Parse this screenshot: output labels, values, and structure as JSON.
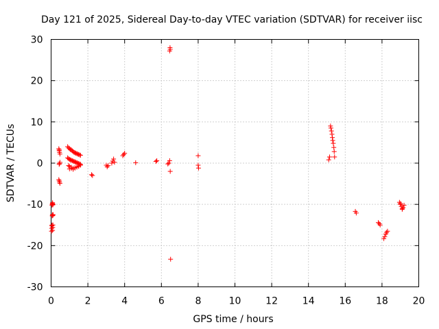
{
  "chart_data": {
    "type": "scatter",
    "title": "Day 121 of 2025, Sidereal Day-to-day VTEC variation (SDTVAR) for receiver iisc",
    "xlabel": "GPS time / hours",
    "ylabel": "SDTVAR / TECUs",
    "xlim": [
      0,
      20
    ],
    "ylim": [
      -30,
      30
    ],
    "xticks": [
      0,
      2,
      4,
      6,
      8,
      10,
      12,
      14,
      16,
      18,
      20
    ],
    "yticks": [
      -30,
      -20,
      -10,
      0,
      10,
      20,
      30
    ],
    "grid": true,
    "marker": "+",
    "color": "#ff0000",
    "series": [
      {
        "name": "SDTVAR",
        "x": [
          0.02,
          0.03,
          0.04,
          0.05,
          0.06,
          0.07,
          0.08,
          0.09,
          0.05,
          0.06,
          0.07,
          0.08,
          0.09,
          0.1,
          0.08,
          0.09,
          0.1,
          0.11,
          0.42,
          0.44,
          0.46,
          0.48,
          0.42,
          0.44,
          0.46,
          0.48,
          0.44,
          0.46,
          0.48,
          0.44,
          0.9,
          0.95,
          1.0,
          1.05,
          1.1,
          1.15,
          1.2,
          1.25,
          1.3,
          1.35,
          1.4,
          1.45,
          1.5,
          1.55,
          1.6,
          0.9,
          0.95,
          1.0,
          1.05,
          1.1,
          1.15,
          1.2,
          1.25,
          1.3,
          1.35,
          1.4,
          1.45,
          1.5,
          1.55,
          1.6,
          0.95,
          1.0,
          1.1,
          1.2,
          1.3,
          1.4,
          1.5,
          1.6,
          1.0,
          1.1,
          1.2,
          1.3,
          1.4,
          1.5,
          2.2,
          2.25,
          3.0,
          3.05,
          3.1,
          3.3,
          3.35,
          3.4,
          3.45,
          3.9,
          3.95,
          4.0,
          4.6,
          5.7,
          5.75,
          6.35,
          6.4,
          6.45,
          6.48,
          6.5,
          6.45,
          6.47,
          6.48,
          8.0,
          8.0,
          8.02,
          15.1,
          15.15,
          15.2,
          15.22,
          15.25,
          15.28,
          15.3,
          15.32,
          15.35,
          15.38,
          15.4,
          15.42,
          16.55,
          16.6,
          17.8,
          17.85,
          17.9,
          18.1,
          18.15,
          18.2,
          18.25,
          18.3,
          18.95,
          19.0,
          19.05,
          19.1,
          19.15,
          19.2,
          19.0,
          19.1
        ],
        "y": [
          -16.5,
          -15.8,
          -15.2,
          -15.0,
          -12.8,
          -12.5,
          -12.6,
          -12.7,
          -10.2,
          -10.0,
          -9.8,
          -9.6,
          -9.9,
          -10.1,
          -16.3,
          -15.6,
          -15.0,
          -12.5,
          3.5,
          3.0,
          2.6,
          2.2,
          -4.0,
          -4.3,
          -4.6,
          -4.9,
          -0.3,
          -0.1,
          0.2,
          3.2,
          4.0,
          3.7,
          3.5,
          3.3,
          3.2,
          3.0,
          2.8,
          2.6,
          2.5,
          2.4,
          2.3,
          2.2,
          2.1,
          2.0,
          1.9,
          1.3,
          1.1,
          0.9,
          0.8,
          0.7,
          0.6,
          0.5,
          0.4,
          0.3,
          0.2,
          0.1,
          0.0,
          -0.1,
          -0.2,
          -0.3,
          -0.6,
          -0.8,
          -1.0,
          -1.2,
          -1.1,
          -0.9,
          -0.7,
          -0.5,
          -1.4,
          -1.3,
          -1.5,
          -1.2,
          -1.0,
          -0.8,
          -2.8,
          -3.0,
          -0.5,
          -0.9,
          -0.6,
          0.0,
          0.5,
          1.0,
          0.2,
          1.8,
          2.1,
          2.4,
          0.1,
          0.4,
          0.6,
          -0.2,
          0.0,
          0.6,
          -2.0,
          -23.3,
          27.2,
          28.0,
          27.6,
          1.8,
          -0.5,
          -1.2,
          0.8,
          1.5,
          9.0,
          8.5,
          7.8,
          7.0,
          6.2,
          5.5,
          4.8,
          3.8,
          2.8,
          1.5,
          -11.7,
          -12.1,
          -14.4,
          -14.7,
          -15.0,
          -18.3,
          -17.8,
          -17.2,
          -16.8,
          -16.5,
          -9.5,
          -10.0,
          -10.5,
          -11.0,
          -10.8,
          -10.2,
          -9.8,
          -11.2
        ]
      }
    ]
  }
}
